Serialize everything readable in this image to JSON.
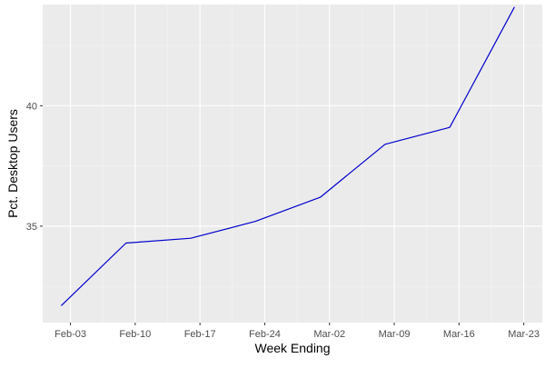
{
  "chart_data": {
    "type": "line",
    "title": "",
    "xlabel": "Week Ending",
    "ylabel": "Pct. Desktop Users",
    "x_tick_labels": [
      "Feb-03",
      "Feb-10",
      "Feb-17",
      "Feb-24",
      "Mar-02",
      "Mar-09",
      "Mar-16",
      "Mar-23"
    ],
    "x_tick_dates": [
      "2020-02-03",
      "2020-02-10",
      "2020-02-17",
      "2020-02-24",
      "2020-03-02",
      "2020-03-09",
      "2020-03-16",
      "2020-03-23"
    ],
    "y_ticks": [
      35,
      40
    ],
    "y_tick_labels": [
      "35",
      "40"
    ],
    "xlim": [
      "2020-01-31",
      "2020-03-25"
    ],
    "ylim": [
      31.0,
      44.2
    ],
    "grid": true,
    "series": [
      {
        "color": "#0000cc",
        "x": [
          "2020-02-02",
          "2020-02-09",
          "2020-02-16",
          "2020-02-23",
          "2020-03-01",
          "2020-03-08",
          "2020-03-15",
          "2020-03-22"
        ],
        "values": [
          31.7,
          34.3,
          34.5,
          35.2,
          36.2,
          38.4,
          39.1,
          44.1
        ]
      }
    ],
    "colors": {
      "panel_background": "#ebebeb",
      "grid_major": "#ffffff",
      "grid_minor": "#f5f5f5",
      "tick_text": "#4d4d4d",
      "tick_mark": "#333333"
    }
  }
}
